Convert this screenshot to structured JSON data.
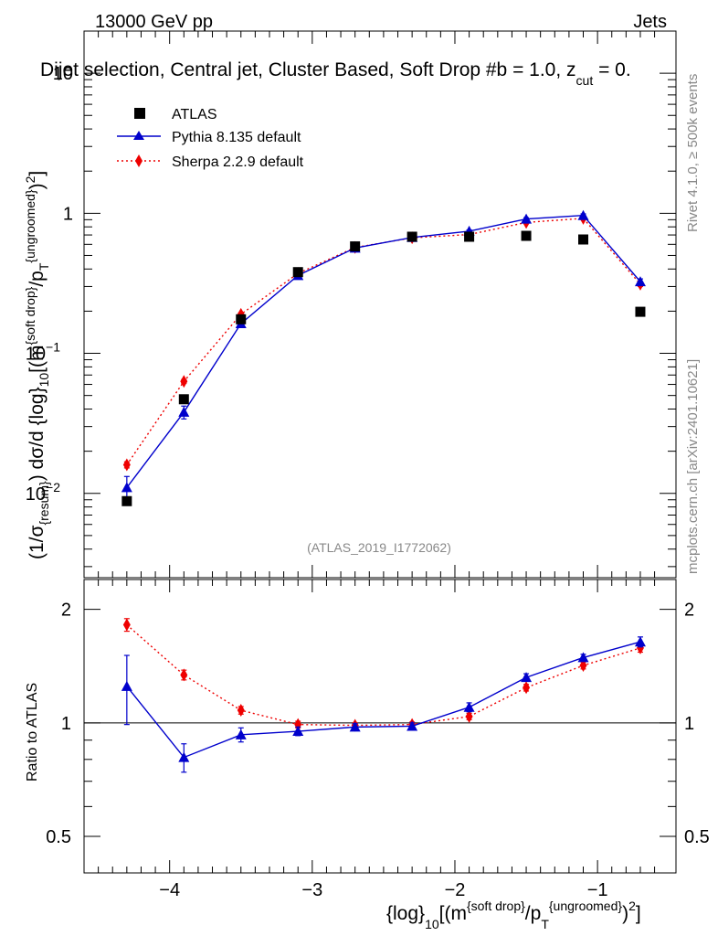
{
  "header": {
    "left": "13000 GeV pp",
    "right": "Jets",
    "title": "Dijet selection, Central jet, Cluster Based, Soft Drop #b = 1.0, z",
    "title_sub": "cut",
    "title_tail": " = 0.",
    "ref_label": "(ATLAS_2019_I1772062)",
    "side_rivet": "Rivet 4.1.0, ≥ 500k events",
    "side_mcplots": "mcplots.cern.ch [arXiv:2401.10621]"
  },
  "axes": {
    "main_ylabel": "(1/σ{resum}) dσ/d {log}10[(m{soft drop}/pT{ungroomed})²]",
    "ratio_ylabel": "Ratio to ATLAS",
    "xlabel": "{log}10[(m{soft drop}/pT{ungroomed})²]",
    "x_ticks": [
      "−4",
      "−3",
      "−2",
      "−1"
    ],
    "main_y_ticks": [
      "10",
      "1",
      "10",
      "10"
    ],
    "ratio_y_ticks": [
      "2",
      "1",
      "0.5"
    ]
  },
  "chart_data": {
    "type": "scatter",
    "x": [
      -4.3,
      -3.9,
      -3.5,
      -3.1,
      -2.7,
      -2.3,
      -1.9,
      -1.5,
      -1.1,
      -0.7
    ],
    "xlim": [
      -4.6,
      -0.45
    ],
    "main": {
      "yscale": "log",
      "ylim": [
        0.0025,
        20
      ],
      "series": [
        {
          "name": "ATLAS",
          "color": "#000000",
          "marker": "square",
          "values": [
            0.0088,
            0.047,
            0.175,
            0.38,
            0.58,
            0.68,
            0.68,
            0.69,
            0.65,
            0.198
          ]
        },
        {
          "name": "Pythia 8.135 default",
          "color": "#0000cc",
          "marker": "triangle",
          "line": "solid",
          "values": [
            0.011,
            0.038,
            0.163,
            0.36,
            0.565,
            0.672,
            0.745,
            0.91,
            0.965,
            0.325
          ],
          "errors": [
            0.0022,
            0.004,
            0.008,
            0.01,
            0.012,
            0.012,
            0.015,
            0.02,
            0.025,
            0.015
          ]
        },
        {
          "name": "Sherpa 2.2.9 default",
          "color": "#ee0000",
          "marker": "diamond",
          "line": "dotted",
          "values": [
            0.016,
            0.063,
            0.19,
            0.372,
            0.57,
            0.668,
            0.705,
            0.86,
            0.92,
            0.312
          ],
          "errors": [
            0.0008,
            0.002,
            0.005,
            0.008,
            0.01,
            0.01,
            0.012,
            0.015,
            0.02,
            0.012
          ]
        }
      ]
    },
    "ratio": {
      "yscale": "log",
      "ylim": [
        0.4,
        2.4
      ],
      "reference_line": 1,
      "series": [
        {
          "name": "Pythia 8.135 default",
          "color": "#0000cc",
          "marker": "triangle",
          "line": "solid",
          "values": [
            1.25,
            0.81,
            0.93,
            0.95,
            0.975,
            0.98,
            1.1,
            1.32,
            1.49,
            1.64
          ],
          "errors": [
            0.26,
            0.07,
            0.04,
            0.025,
            0.02,
            0.02,
            0.03,
            0.03,
            0.03,
            0.05
          ]
        },
        {
          "name": "Sherpa 2.2.9 default",
          "color": "#ee0000",
          "marker": "diamond",
          "line": "dotted",
          "values": [
            1.82,
            1.34,
            1.08,
            0.99,
            0.985,
            0.99,
            1.04,
            1.24,
            1.42,
            1.58
          ],
          "errors": [
            0.07,
            0.04,
            0.025,
            0.02,
            0.015,
            0.015,
            0.02,
            0.025,
            0.03,
            0.04
          ]
        }
      ]
    },
    "legend": {
      "placement": "top-left",
      "entries": [
        "ATLAS",
        "Pythia 8.135 default",
        "Sherpa 2.2.9 default"
      ]
    }
  }
}
